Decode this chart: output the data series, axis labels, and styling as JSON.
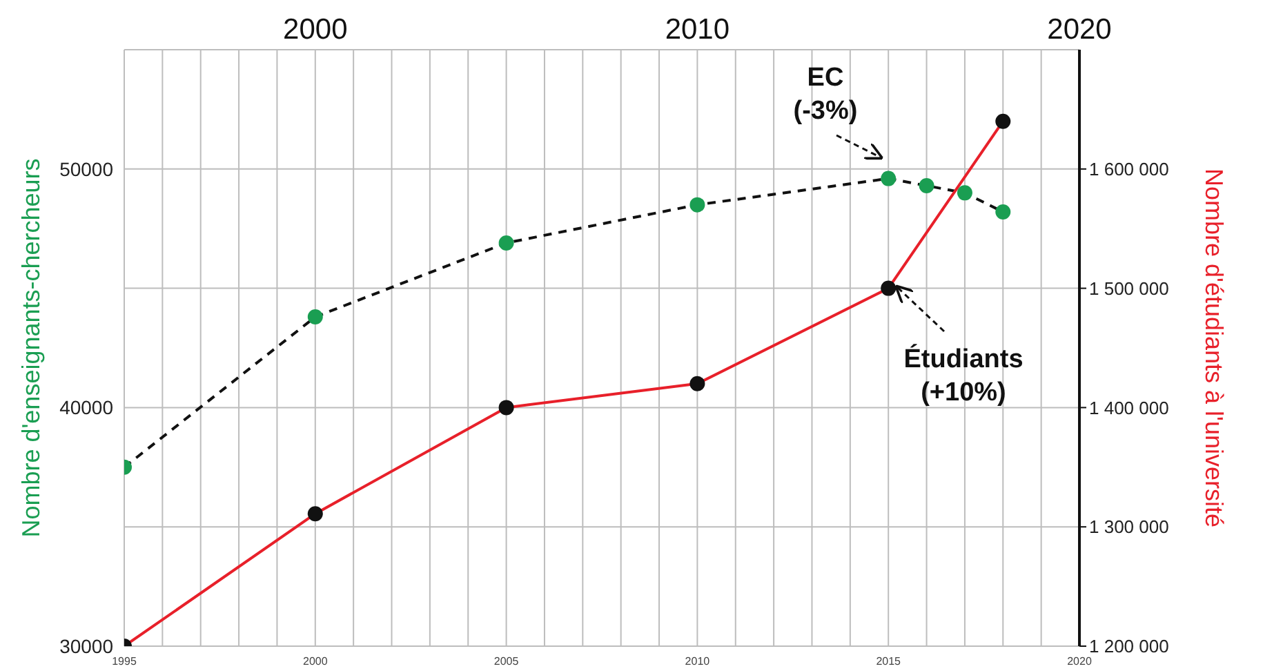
{
  "chart_data": {
    "type": "line",
    "ylabel": "Nombre d'enseignants-chercheurs",
    "y2label": "Nombre d'étudiants à l'université",
    "xlim": [
      1995,
      2020
    ],
    "xticks": [
      1995,
      {
        "value": 1996,
        "label": null
      },
      {
        "value": 1997,
        "label": null
      },
      {
        "value": 1998,
        "label": null
      },
      {
        "value": 1999,
        "label": null
      },
      2000,
      {
        "value": 2001,
        "label": null
      },
      {
        "value": 2002,
        "label": null
      },
      {
        "value": 2003,
        "label": null
      },
      {
        "value": 2004,
        "label": null
      },
      2005,
      {
        "value": 2006,
        "label": null
      },
      {
        "value": 2007,
        "label": null
      },
      {
        "value": 2008,
        "label": null
      },
      {
        "value": 2009,
        "label": null
      },
      2010,
      {
        "value": 2011,
        "label": null
      },
      {
        "value": 2012,
        "label": null
      },
      {
        "value": 2013,
        "label": null
      },
      {
        "value": 2014,
        "label": null
      },
      2015,
      {
        "value": 2016,
        "label": null
      },
      {
        "value": 2017,
        "label": null
      },
      {
        "value": 2018,
        "label": null
      },
      {
        "value": 2019,
        "label": null
      },
      2020
    ],
    "x2lim": [
      1995,
      2020
    ],
    "x2ticks": [
      2000,
      2010,
      2020
    ],
    "ylim": [
      30000,
      55000
    ],
    "yticks": [
      30000,
      {
        "value": 35000,
        "label": null
      },
      40000,
      {
        "value": 45000,
        "label": null
      },
      50000
    ],
    "y2lim": [
      1200000,
      1700000
    ],
    "y2ticks": [
      {
        "value": 1200000,
        "label": "1 200 000"
      },
      {
        "value": 1300000,
        "label": "1 300 000"
      },
      {
        "value": 1400000,
        "label": "1 400 000"
      },
      {
        "value": 1500000,
        "label": "1 500 000"
      },
      {
        "value": 1600000,
        "label": "1 600 000"
      }
    ],
    "grid": true,
    "marker": "circle",
    "series": [
      {
        "color": "#1a9e52",
        "line_style": "dashed",
        "x": [
          1995,
          2000,
          2005,
          2010,
          2015,
          2016,
          2017,
          2018
        ],
        "values": [
          37500,
          43800,
          46900,
          48500,
          49600,
          49300,
          49000,
          48200
        ]
      },
      {
        "color": "#e8202a",
        "line_style": "solid",
        "axis": "y2",
        "x": [
          1995,
          2000,
          2005,
          2010,
          2015,
          2018
        ],
        "values": [
          1200000,
          1311000,
          1400000,
          1420000,
          1500000,
          1640000
        ]
      }
    ],
    "annotations": [
      "EC\n(-3%)",
      "Étudiants\n(+10%)"
    ]
  }
}
